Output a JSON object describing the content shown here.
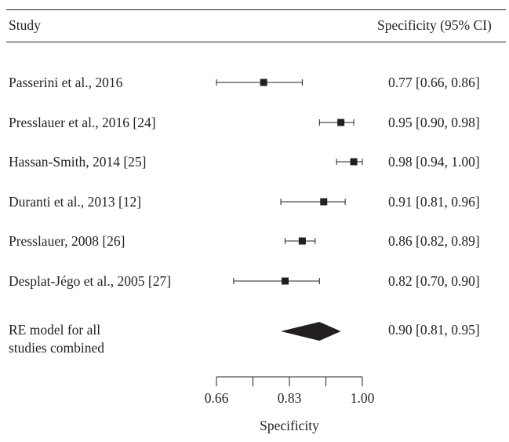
{
  "header": {
    "study_col": "Study",
    "effect_col": "Specificity (95% CI)"
  },
  "chart_data": {
    "type": "forest",
    "xlabel": "Specificity",
    "xlim": [
      0.66,
      1.0
    ],
    "tick_labels": [
      "0.66",
      "0.83",
      "1.00"
    ],
    "studies": [
      {
        "label": "Passerini et al., 2016",
        "estimate": 0.77,
        "lower": 0.66,
        "upper": 0.86,
        "text": "0.77 [0.66, 0.86]"
      },
      {
        "label": "Presslauer et al., 2016 [24]",
        "estimate": 0.95,
        "lower": 0.9,
        "upper": 0.98,
        "text": "0.95 [0.90, 0.98]"
      },
      {
        "label": "Hassan-Smith, 2014 [25]",
        "estimate": 0.98,
        "lower": 0.94,
        "upper": 1.0,
        "text": "0.98 [0.94, 1.00]"
      },
      {
        "label": "Duranti et al., 2013 [12]",
        "estimate": 0.91,
        "lower": 0.81,
        "upper": 0.96,
        "text": "0.91 [0.81, 0.96]"
      },
      {
        "label": "Presslauer, 2008 [26]",
        "estimate": 0.86,
        "lower": 0.82,
        "upper": 0.89,
        "text": "0.86 [0.82, 0.89]"
      },
      {
        "label": "Desplat-Jégo et al., 2005 [27]",
        "estimate": 0.82,
        "lower": 0.7,
        "upper": 0.9,
        "text": "0.82 [0.70, 0.90]"
      }
    ],
    "summary": {
      "label_lines": [
        "RE model for all",
        "studies combined"
      ],
      "estimate": 0.9,
      "lower": 0.81,
      "upper": 0.95,
      "text": "0.90 [0.81, 0.95]"
    }
  }
}
